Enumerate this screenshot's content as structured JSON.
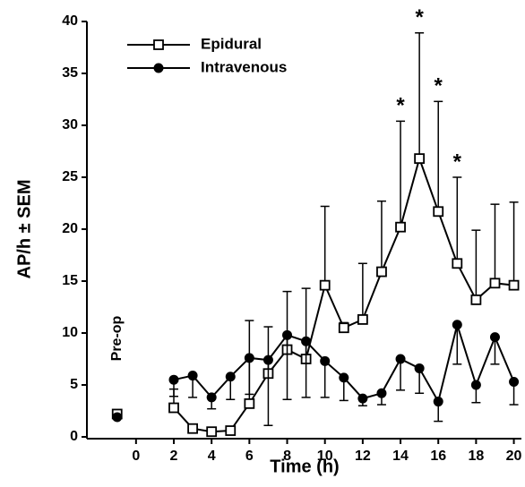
{
  "chart_data": {
    "type": "line",
    "x_label": "Time (h)",
    "y_label": "AP/h ± SEM",
    "x": [
      2,
      3,
      4,
      5,
      6,
      7,
      8,
      9,
      10,
      11,
      12,
      13,
      14,
      15,
      16,
      17,
      18,
      19,
      20
    ],
    "series": [
      {
        "name": "Epidural",
        "color": "#000000",
        "marker": "square-open",
        "error_side": "upper",
        "values": [
          2.8,
          0.8,
          0.5,
          0.6,
          3.2,
          6.1,
          8.4,
          7.5,
          14.6,
          10.5,
          11.3,
          15.9,
          20.2,
          26.8,
          21.7,
          16.7,
          13.2,
          14.8,
          14.6
        ],
        "errors": [
          1.8,
          0.3,
          0.3,
          0.3,
          8.0,
          4.5,
          5.6,
          6.8,
          7.6,
          0.5,
          5.4,
          6.8,
          10.2,
          12.1,
          10.6,
          8.3,
          6.7,
          7.6,
          8.0
        ],
        "preop": 2.2
      },
      {
        "name": "Intravenous",
        "color": "#000000",
        "marker": "circle-filled",
        "error_side": "lower",
        "values": [
          5.5,
          5.9,
          3.8,
          5.8,
          7.6,
          7.4,
          9.8,
          9.2,
          7.3,
          5.7,
          3.7,
          4.2,
          7.5,
          6.6,
          3.4,
          10.8,
          5.0,
          9.6,
          5.3
        ],
        "errors": [
          1.6,
          2.1,
          1.1,
          2.2,
          3.5,
          6.3,
          6.2,
          5.4,
          3.5,
          2.2,
          0.7,
          1.1,
          3.0,
          2.4,
          1.9,
          3.8,
          1.7,
          2.6,
          2.2
        ],
        "preop": 1.9
      }
    ],
    "preop_label": "Pre-op",
    "preop_x": -1,
    "annotations": [
      {
        "x": 14,
        "text": "*"
      },
      {
        "x": 15,
        "text": "*"
      },
      {
        "x": 16,
        "text": "*"
      },
      {
        "x": 17,
        "text": "*"
      }
    ],
    "xlim": [
      -2.6,
      20.4
    ],
    "xticks": [
      0,
      2,
      4,
      6,
      8,
      10,
      12,
      14,
      16,
      18,
      20
    ],
    "ylim": [
      0,
      40
    ],
    "yticks": [
      0,
      5,
      10,
      15,
      20,
      25,
      30,
      35,
      40
    ],
    "legend": "upper-left"
  }
}
